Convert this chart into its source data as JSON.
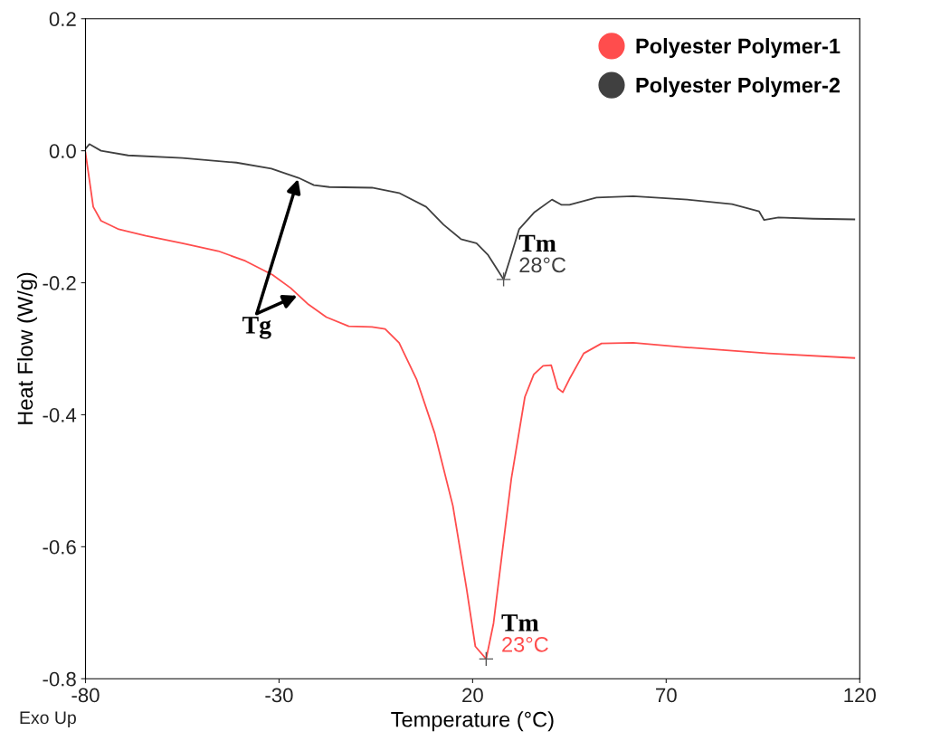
{
  "chart_data": {
    "type": "line",
    "xlabel": "Temperature (°C)",
    "ylabel": "Heat Flow (W/g)",
    "xlim": [
      -80,
      120
    ],
    "xticks": [
      -80,
      -30,
      20,
      70,
      120
    ],
    "ylim": [
      -0.8,
      0.2
    ],
    "yticks": [
      {
        "value": -0.8,
        "label": "-0.8"
      },
      {
        "value": -0.6,
        "label": "-0.6"
      },
      {
        "value": -0.4,
        "label": "-0.4"
      },
      {
        "value": -0.2,
        "label": "-0.2"
      },
      {
        "value": 0.0,
        "label": "0.0"
      },
      {
        "value": 0.2,
        "label": "0.2"
      }
    ],
    "grid": false,
    "legend": "top right",
    "marker": "none",
    "line_style": "solid",
    "series": [
      {
        "name": "Polyester Polymer-1",
        "color": "#ff4d4d",
        "x": [
          -80,
          -79,
          -78,
          -76,
          -71.4,
          -64.4,
          -55,
          -45.7,
          -38.7,
          -31.7,
          -27,
          -22.4,
          -17.8,
          -12,
          -6,
          -2.6,
          1,
          5.5,
          10.2,
          14.9,
          18.4,
          20.7,
          23.5,
          25.4,
          27.7,
          30,
          33.5,
          35.8,
          38.2,
          40.3,
          42,
          43.3,
          45,
          48.7,
          53.3,
          61.5,
          75.5,
          96.5,
          118.6
        ],
        "values": [
          -0.003,
          -0.044,
          -0.085,
          -0.106,
          -0.119,
          -0.129,
          -0.14,
          -0.152,
          -0.167,
          -0.188,
          -0.208,
          -0.233,
          -0.252,
          -0.266,
          -0.267,
          -0.27,
          -0.291,
          -0.346,
          -0.428,
          -0.538,
          -0.662,
          -0.751,
          -0.77,
          -0.716,
          -0.606,
          -0.497,
          -0.373,
          -0.339,
          -0.326,
          -0.325,
          -0.36,
          -0.366,
          -0.346,
          -0.307,
          -0.292,
          -0.291,
          -0.298,
          -0.307,
          -0.314
        ]
      },
      {
        "name": "Polyester Polymer-2",
        "color": "#404040",
        "x": [
          -80,
          -79,
          -76,
          -69,
          -55,
          -41,
          -32,
          -25,
          -21,
          -17,
          -6,
          1,
          8,
          12.5,
          17,
          21,
          24,
          26.5,
          28,
          29.5,
          32,
          36,
          40.5,
          43,
          45,
          52,
          61.5,
          75.5,
          87,
          94,
          95.3,
          99,
          108,
          118.6
        ],
        "values": [
          0.003,
          0.01,
          0.0,
          -0.007,
          -0.011,
          -0.018,
          -0.027,
          -0.041,
          -0.052,
          -0.055,
          -0.056,
          -0.064,
          -0.085,
          -0.112,
          -0.134,
          -0.14,
          -0.158,
          -0.181,
          -0.195,
          -0.167,
          -0.119,
          -0.093,
          -0.074,
          -0.082,
          -0.082,
          -0.071,
          -0.069,
          -0.074,
          -0.081,
          -0.092,
          -0.105,
          -0.101,
          -0.103,
          -0.104
        ]
      }
    ],
    "annotations": [
      {
        "text": "Tm\n28°C",
        "x": 28,
        "y": -0.195
      },
      {
        "text": "Tm\n23°C",
        "x": 23.5,
        "y": -0.77
      },
      {
        "text": "Tg",
        "x": -25,
        "y": -0.041
      },
      "Exo Up"
    ]
  }
}
